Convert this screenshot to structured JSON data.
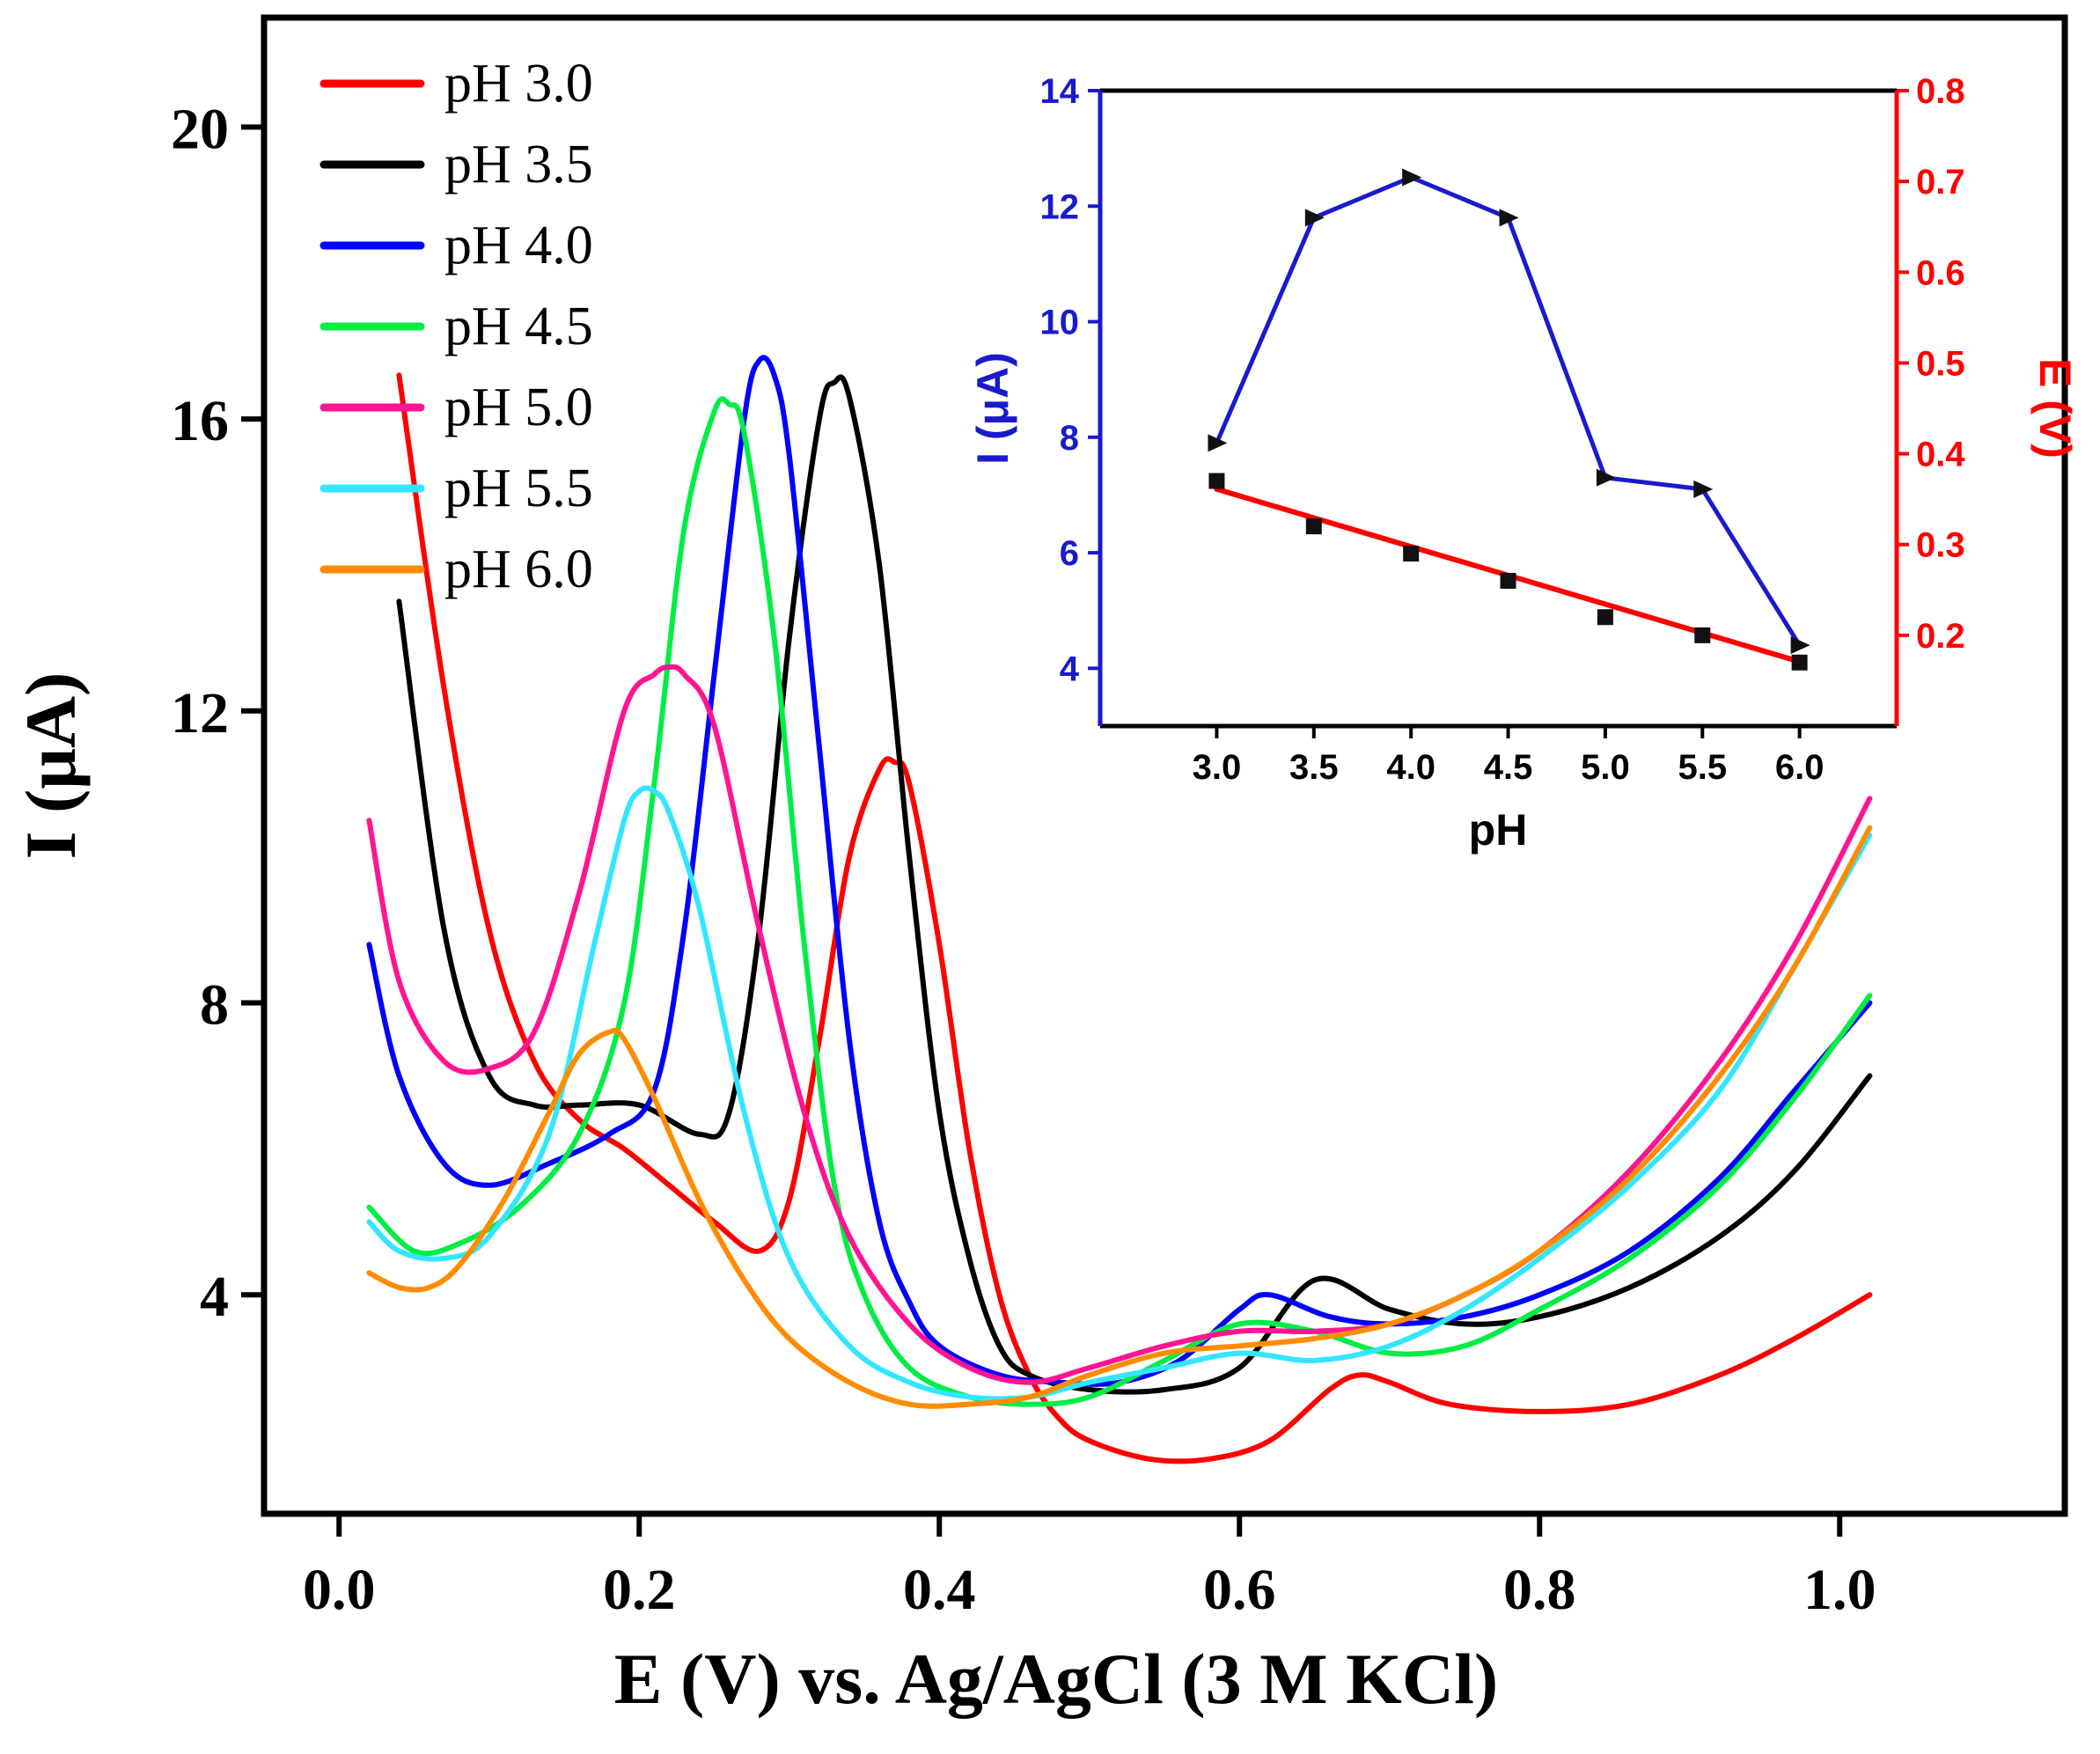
{
  "chart_data": [
    {
      "type": "line",
      "id": "main",
      "xlabel": "E (V) vs. Ag/AgCl (3 M KCl)",
      "ylabel": "I (μA)",
      "xlim": [
        -0.05,
        1.15
      ],
      "ylim": [
        1.0,
        21.5
      ],
      "xticks": [
        0.0,
        0.2,
        0.4,
        0.6,
        0.8,
        1.0
      ],
      "xtick_labels": [
        "0.0",
        "0.2",
        "0.4",
        "0.6",
        "0.8",
        "1.0"
      ],
      "yticks": [
        4,
        8,
        12,
        16,
        20
      ],
      "ytick_labels": [
        "4",
        "8",
        "12",
        "16",
        "20"
      ],
      "legend_position": "top-left",
      "series": [
        {
          "name": "pH 3.0",
          "color": "#ff0000",
          "x": [
            0.04,
            0.07,
            0.1,
            0.13,
            0.16,
            0.19,
            0.22,
            0.25,
            0.28,
            0.3,
            0.32,
            0.34,
            0.36,
            0.37,
            0.38,
            0.4,
            0.42,
            0.44,
            0.46,
            0.48,
            0.5,
            0.54,
            0.58,
            0.62,
            0.66,
            0.68,
            0.7,
            0.74,
            0.8,
            0.86,
            0.92,
            0.97,
            1.02
          ],
          "y": [
            16.6,
            12.3,
            9.0,
            7.2,
            6.4,
            6.0,
            5.5,
            5.0,
            4.6,
            5.3,
            7.5,
            10.0,
            11.2,
            11.3,
            11.0,
            8.8,
            6.0,
            4.0,
            2.9,
            2.3,
            2.0,
            1.75,
            1.75,
            2.0,
            2.7,
            2.9,
            2.8,
            2.5,
            2.4,
            2.5,
            2.9,
            3.4,
            4.0
          ]
        },
        {
          "name": "pH 3.5",
          "color": "#000000",
          "x": [
            0.04,
            0.07,
            0.1,
            0.13,
            0.16,
            0.2,
            0.24,
            0.26,
            0.28,
            0.3,
            0.32,
            0.33,
            0.34,
            0.36,
            0.38,
            0.4,
            0.42,
            0.44,
            0.46,
            0.5,
            0.55,
            0.6,
            0.65,
            0.7,
            0.75,
            0.8,
            0.86,
            0.92,
            0.97,
            1.02
          ],
          "y": [
            13.5,
            9.0,
            7.0,
            6.6,
            6.6,
            6.6,
            6.2,
            6.5,
            9.0,
            13.0,
            16.0,
            16.5,
            16.3,
            14.0,
            10.0,
            6.5,
            4.5,
            3.3,
            2.9,
            2.7,
            2.7,
            3.0,
            4.2,
            3.8,
            3.6,
            3.7,
            4.1,
            4.8,
            5.7,
            7.0
          ]
        },
        {
          "name": "pH 4.0",
          "color": "#0000ff",
          "x": [
            0.02,
            0.04,
            0.07,
            0.1,
            0.14,
            0.18,
            0.21,
            0.23,
            0.25,
            0.27,
            0.28,
            0.29,
            0.3,
            0.32,
            0.34,
            0.36,
            0.38,
            0.4,
            0.44,
            0.48,
            0.52,
            0.56,
            0.6,
            0.62,
            0.66,
            0.7,
            0.75,
            0.8,
            0.86,
            0.92,
            0.97,
            1.02
          ],
          "y": [
            8.8,
            7.0,
            5.8,
            5.5,
            5.8,
            6.2,
            6.8,
            9.0,
            12.5,
            16.0,
            16.8,
            16.6,
            15.5,
            11.5,
            7.5,
            5.0,
            3.9,
            3.3,
            2.9,
            2.8,
            2.8,
            3.1,
            3.8,
            4.0,
            3.7,
            3.6,
            3.7,
            4.0,
            4.6,
            5.6,
            6.8,
            8.0
          ]
        },
        {
          "name": "pH 4.5",
          "color": "#00ee44",
          "x": [
            0.02,
            0.05,
            0.08,
            0.12,
            0.16,
            0.19,
            0.21,
            0.23,
            0.25,
            0.26,
            0.27,
            0.29,
            0.31,
            0.33,
            0.35,
            0.38,
            0.42,
            0.46,
            0.5,
            0.55,
            0.6,
            0.65,
            0.7,
            0.75,
            0.8,
            0.86,
            0.92,
            0.97,
            1.02
          ],
          "y": [
            5.2,
            4.6,
            4.7,
            5.2,
            6.2,
            8.0,
            11.0,
            14.5,
            16.1,
            16.2,
            15.8,
            13.0,
            8.8,
            5.5,
            4.0,
            3.0,
            2.6,
            2.5,
            2.6,
            3.1,
            3.6,
            3.5,
            3.2,
            3.3,
            3.8,
            4.5,
            5.5,
            6.7,
            8.1
          ]
        },
        {
          "name": "pH 5.0",
          "color": "#ff1493",
          "x": [
            0.02,
            0.04,
            0.07,
            0.1,
            0.13,
            0.16,
            0.19,
            0.21,
            0.22,
            0.23,
            0.25,
            0.28,
            0.31,
            0.34,
            0.38,
            0.42,
            0.46,
            0.5,
            0.55,
            0.6,
            0.65,
            0.7,
            0.75,
            0.8,
            0.86,
            0.92,
            0.97,
            1.02
          ],
          "y": [
            10.5,
            8.3,
            7.2,
            7.1,
            7.6,
            9.5,
            12.0,
            12.5,
            12.6,
            12.5,
            11.8,
            9.0,
            6.5,
            4.8,
            3.6,
            3.0,
            2.8,
            3.0,
            3.3,
            3.5,
            3.5,
            3.6,
            4.0,
            4.6,
            5.7,
            7.2,
            8.8,
            10.8
          ]
        },
        {
          "name": "pH 5.5",
          "color": "#33e6ff",
          "x": [
            0.02,
            0.04,
            0.07,
            0.1,
            0.14,
            0.17,
            0.19,
            0.2,
            0.21,
            0.22,
            0.24,
            0.27,
            0.3,
            0.34,
            0.38,
            0.42,
            0.46,
            0.5,
            0.55,
            0.6,
            0.65,
            0.7,
            0.75,
            0.8,
            0.86,
            0.92,
            0.97,
            1.02
          ],
          "y": [
            5.0,
            4.6,
            4.5,
            4.8,
            6.2,
            8.8,
            10.5,
            10.9,
            10.9,
            10.6,
            9.3,
            6.5,
            4.5,
            3.3,
            2.8,
            2.6,
            2.6,
            2.8,
            3.0,
            3.2,
            3.1,
            3.3,
            3.8,
            4.5,
            5.5,
            6.8,
            8.5,
            10.3
          ]
        },
        {
          "name": "pH 6.0",
          "color": "#ff8c00",
          "x": [
            0.02,
            0.04,
            0.06,
            0.08,
            0.11,
            0.14,
            0.16,
            0.18,
            0.19,
            0.21,
            0.24,
            0.27,
            0.3,
            0.34,
            0.38,
            0.42,
            0.46,
            0.5,
            0.55,
            0.6,
            0.65,
            0.7,
            0.75,
            0.8,
            0.86,
            0.92,
            0.97,
            1.02
          ],
          "y": [
            4.3,
            4.1,
            4.1,
            4.4,
            5.3,
            6.5,
            7.3,
            7.6,
            7.5,
            6.7,
            5.3,
            4.2,
            3.4,
            2.8,
            2.5,
            2.5,
            2.6,
            2.9,
            3.2,
            3.3,
            3.4,
            3.6,
            4.0,
            4.6,
            5.6,
            7.0,
            8.5,
            10.4
          ]
        }
      ]
    },
    {
      "type": "line",
      "id": "inset",
      "xlabel": "pH",
      "ylabel_left": "I (μA)",
      "ylabel_right": "E (V)",
      "xlim": [
        2.4,
        6.5
      ],
      "ylim_left": [
        3,
        14
      ],
      "ylim_right": [
        0.1,
        0.8
      ],
      "xticks": [
        3.0,
        3.5,
        4.0,
        4.5,
        5.0,
        5.5,
        6.0
      ],
      "xtick_labels": [
        "3.0",
        "3.5",
        "4.0",
        "4.5",
        "5.0",
        "5.5",
        "6.0"
      ],
      "yticks_left": [
        4,
        6,
        8,
        10,
        12,
        14
      ],
      "ytick_labels_left": [
        "4",
        "6",
        "8",
        "10",
        "12",
        "14"
      ],
      "yticks_right": [
        0.2,
        0.3,
        0.4,
        0.5,
        0.6,
        0.7,
        0.8
      ],
      "ytick_labels_right": [
        "0.2",
        "0.3",
        "0.4",
        "0.5",
        "0.6",
        "0.7",
        "0.8"
      ],
      "left_axis_color": "#1a1acd",
      "right_axis_color": "#ff0000",
      "current_series": {
        "name": "I (μA)",
        "color": "#1a1acd",
        "marker": "triangle-right",
        "x": [
          3.0,
          3.5,
          4.0,
          4.5,
          5.0,
          5.5,
          6.0
        ],
        "y": [
          7.9,
          11.8,
          12.5,
          11.8,
          7.3,
          7.1,
          4.4
        ]
      },
      "potential_series": {
        "name": "E (V)",
        "color": "#000000",
        "marker": "square",
        "x": [
          3.0,
          3.5,
          4.0,
          4.5,
          5.0,
          5.5,
          6.0
        ],
        "y": [
          0.37,
          0.32,
          0.29,
          0.26,
          0.22,
          0.2,
          0.17
        ]
      },
      "fit_line": {
        "color": "#ff0000",
        "x": [
          3.0,
          6.0
        ],
        "y": [
          0.361,
          0.171
        ]
      }
    }
  ]
}
